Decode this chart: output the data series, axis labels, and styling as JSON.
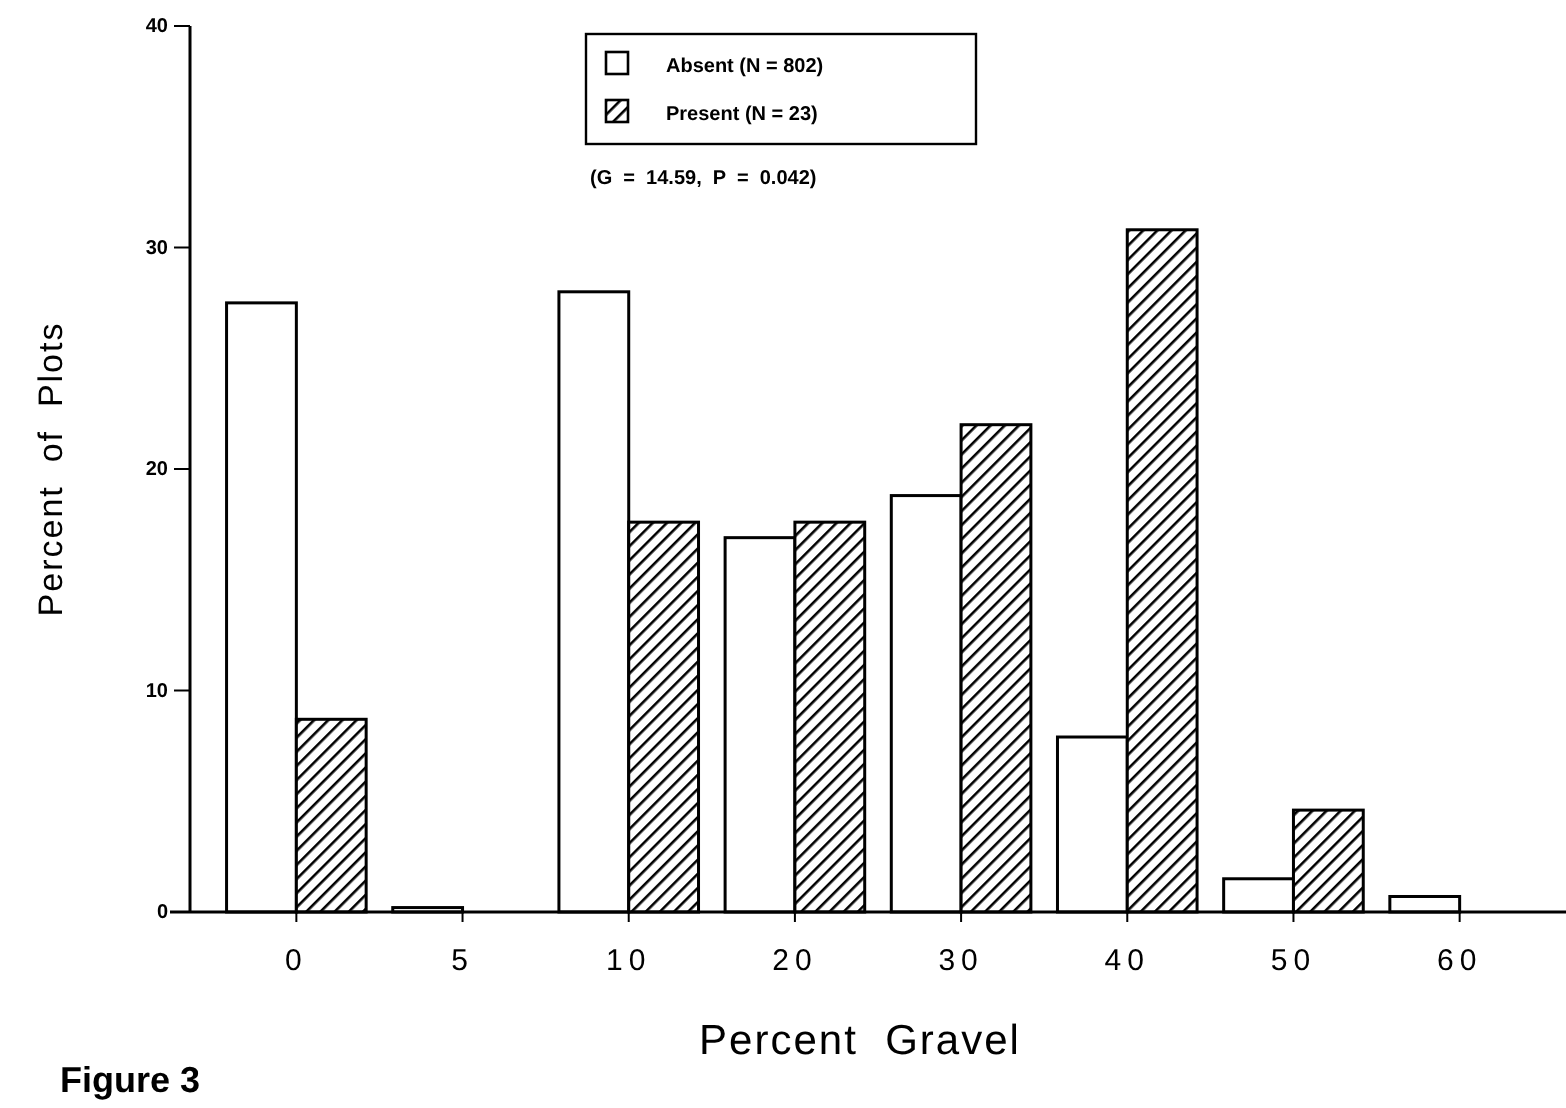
{
  "chart_data": {
    "type": "bar",
    "xlabel": "Percent  Gravel",
    "ylabel": "Percent  of  Plots",
    "categories": [
      "0",
      "5",
      "10",
      "20",
      "30",
      "40",
      "50",
      "60"
    ],
    "series": [
      {
        "name": "Absent (N = 802)",
        "color": "#ffffff",
        "values": [
          27.5,
          0.2,
          28.0,
          16.9,
          18.8,
          7.9,
          1.5,
          0.7
        ]
      },
      {
        "name": "Present (N = 23)",
        "color": "#000000",
        "values": [
          8.7,
          0,
          17.6,
          17.6,
          22.0,
          30.8,
          4.6,
          0
        ]
      }
    ],
    "ylim": [
      0,
      40
    ],
    "yticks": [
      0,
      10,
      20,
      30,
      40
    ],
    "legend": "top",
    "annotations": [
      "(G  =  14.59,  P  =  0.042)",
      "Figure 3"
    ]
  }
}
